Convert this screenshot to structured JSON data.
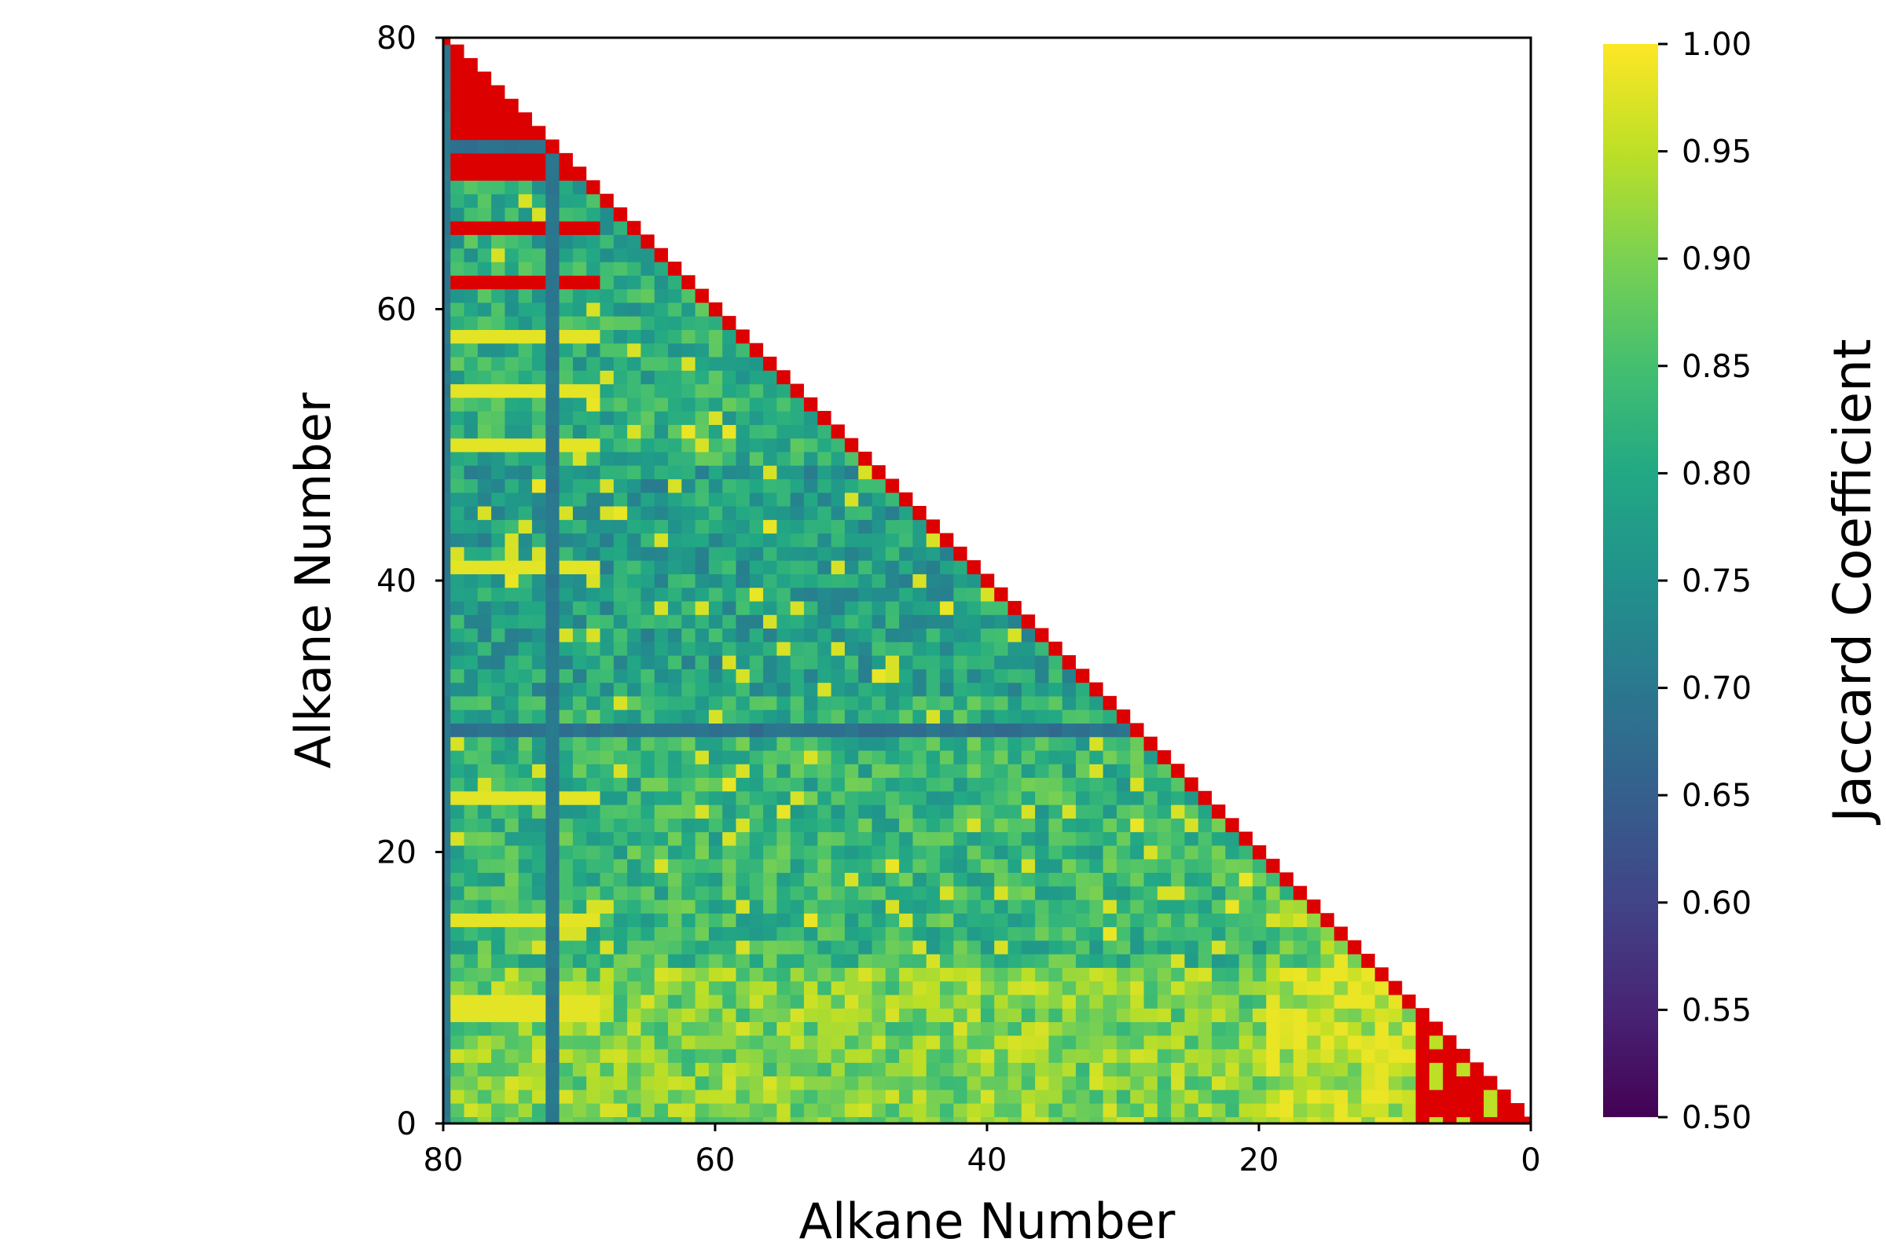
{
  "chart_data": {
    "type": "heatmap",
    "title": "",
    "xlabel": "Alkane Number",
    "ylabel": "Alkane Number",
    "colorbar_label": "Jaccard Coefficient",
    "colormap": "viridis",
    "color_range": [
      0.5,
      1.0
    ],
    "highlight_color": "#dc0000",
    "highlight_meaning": "value equal to 1.00 shown in red",
    "x_range": [
      80,
      0
    ],
    "y_range": [
      0,
      80
    ],
    "x_direction": "decreasing",
    "grid": false,
    "matrix_shape": "lower-left triangle (cells where x >= y)",
    "x_ticks": [
      "80",
      "60",
      "40",
      "20",
      "0"
    ],
    "y_ticks": [
      "0",
      "20",
      "40",
      "60",
      "80"
    ],
    "colorbar_ticks": [
      "0.50",
      "0.55",
      "0.60",
      "0.65",
      "0.70",
      "0.75",
      "0.80",
      "0.85",
      "0.90",
      "0.95",
      "1.00"
    ],
    "notable_features": {
      "low_similarity_column_x": [
        80,
        72
      ],
      "red_rows_y": [
        66,
        62
      ],
      "red_block_y": [
        70,
        80
      ],
      "bright_rows_y": [
        58,
        54,
        50,
        41,
        24,
        15,
        9,
        8
      ],
      "bright_row_values": 0.98,
      "low_similarity_row_y": [
        72,
        29
      ]
    }
  }
}
